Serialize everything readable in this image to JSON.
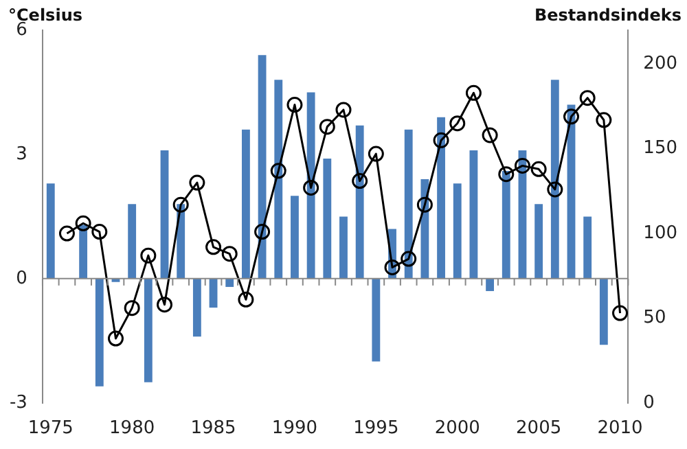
{
  "chart_data": {
    "type": "bar",
    "ylabel": "°Celsius",
    "y2label": "Bestandsindeks",
    "categories": [
      "1975",
      null,
      null,
      null,
      null,
      "1980",
      null,
      null,
      null,
      null,
      "1985",
      null,
      null,
      null,
      null,
      "1990",
      null,
      null,
      null,
      null,
      "1995",
      null,
      null,
      null,
      null,
      "2000",
      null,
      null,
      null,
      null,
      "2005",
      null,
      null,
      null,
      null,
      "2010"
    ],
    "series": [
      {
        "color": "#4a7ebb",
        "values": [
          2.3,
          null,
          1.3,
          -2.6,
          -0.08,
          1.8,
          -2.5,
          3.1,
          1.8,
          -1.4,
          -0.7,
          -0.2,
          3.6,
          5.4,
          4.8,
          2.0,
          4.5,
          2.9,
          1.5,
          3.7,
          -2.0,
          1.2,
          3.6,
          2.4,
          3.9,
          2.3,
          3.1,
          -0.3,
          2.6,
          3.1,
          1.8,
          4.8,
          4.2,
          1.5,
          -1.6,
          null
        ]
      },
      {
        "type": "line",
        "axis": "y2",
        "color": "#000000",
        "values": [
          null,
          100,
          106,
          101,
          38,
          56,
          87,
          58,
          117,
          130,
          92,
          88,
          61,
          101,
          137,
          176,
          127,
          163,
          173,
          131,
          147,
          80,
          85,
          117,
          155,
          165,
          183,
          158,
          135,
          140,
          138,
          126,
          169,
          180,
          167,
          53
        ]
      }
    ],
    "ylim": [
      -3,
      6
    ],
    "yticks": [
      -3,
      0,
      3,
      6
    ],
    "y2lim": [
      0,
      220
    ],
    "y2ticks": [
      0,
      50,
      100,
      150,
      200
    ],
    "ref_lines": [
      {
        "axis": "y",
        "value": 0,
        "color": "#888888"
      }
    ],
    "grid": false,
    "legend": false,
    "marker": "circle",
    "line_style": "solid"
  }
}
